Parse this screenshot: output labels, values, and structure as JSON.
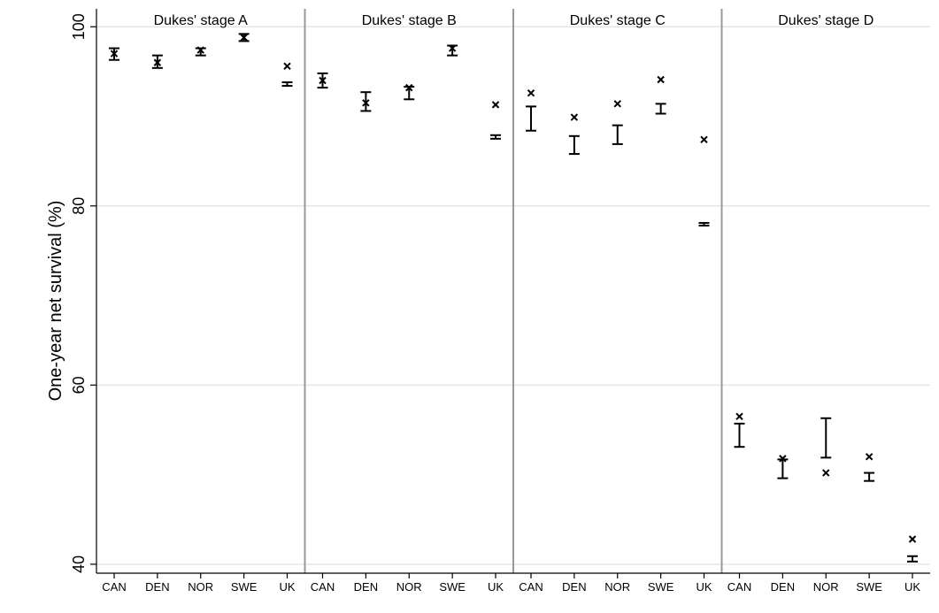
{
  "chart_data": {
    "type": "scatter",
    "ylabel": "One-year net survival (%)",
    "xlabel": "",
    "ylim": [
      39,
      102
    ],
    "yticks": [
      40,
      60,
      80,
      100
    ],
    "grid": true,
    "colors": {
      "marks": "#000000",
      "grid": "#e6e6e6",
      "divider": "#999999"
    },
    "panels": [
      {
        "title": "Dukes' stage A",
        "categories": [
          "CAN",
          "DEN",
          "NOR",
          "SWE",
          "UK"
        ],
        "ci_low": [
          96.3,
          95.4,
          96.8,
          98.4,
          93.4
        ],
        "ci_high": [
          97.6,
          96.8,
          97.6,
          99.2,
          93.8
        ],
        "point": [
          97.0,
          96.0,
          97.4,
          98.8,
          95.6
        ]
      },
      {
        "title": "Dukes' stage B",
        "categories": [
          "CAN",
          "DEN",
          "NOR",
          "SWE",
          "UK"
        ],
        "ci_low": [
          93.2,
          90.6,
          91.9,
          96.8,
          87.5
        ],
        "ci_high": [
          94.8,
          92.7,
          93.3,
          97.9,
          87.9
        ],
        "point": [
          94.0,
          91.5,
          93.2,
          97.6,
          91.3
        ]
      },
      {
        "title": "Dukes' stage C",
        "categories": [
          "CAN",
          "DEN",
          "NOR",
          "SWE",
          "UK"
        ],
        "ci_low": [
          88.4,
          85.8,
          86.9,
          90.3,
          77.8
        ],
        "ci_high": [
          91.1,
          87.8,
          89.0,
          91.4,
          78.1
        ],
        "point": [
          92.6,
          89.9,
          91.4,
          94.1,
          87.4
        ]
      },
      {
        "title": "Dukes' stage D",
        "categories": [
          "CAN",
          "DEN",
          "NOR",
          "SWE",
          "UK"
        ],
        "ci_low": [
          53.1,
          49.6,
          51.9,
          49.3,
          40.3
        ],
        "ci_high": [
          55.7,
          51.7,
          56.3,
          50.2,
          40.9
        ],
        "point": [
          56.5,
          51.8,
          50.2,
          52.0,
          42.8
        ]
      }
    ]
  }
}
